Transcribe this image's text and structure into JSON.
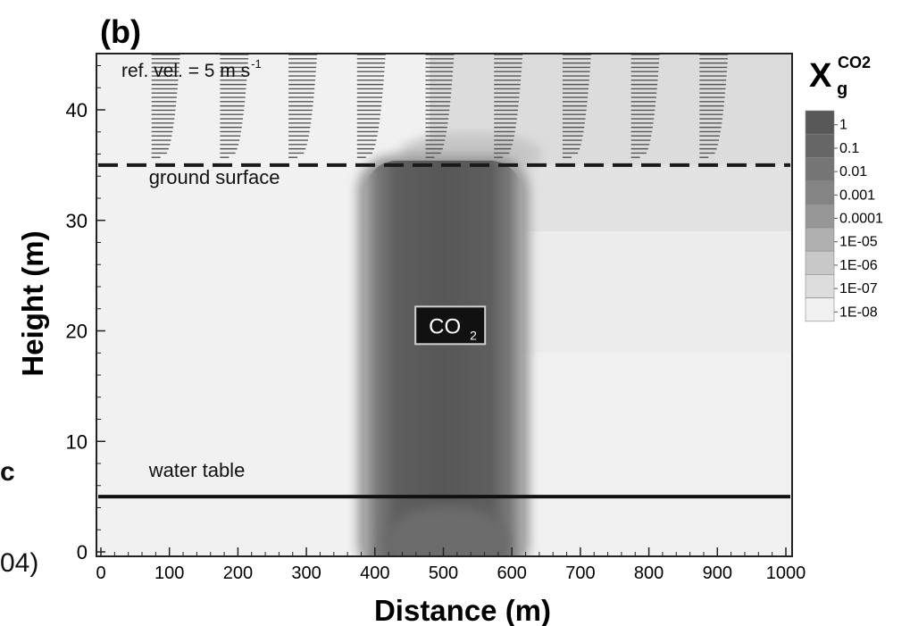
{
  "panel_label": "(b)",
  "edge_fragments": [
    "c",
    "04)"
  ],
  "colors": {
    "plume_core": "#575757",
    "background": "#f1f1f1",
    "upper_zone": "#dcdcdc",
    "water_table": "#111111",
    "ground_surface": "#1a1a1a"
  },
  "chart_data": {
    "type": "heatmap",
    "xlabel": "Distance (m)",
    "ylabel": "Height (m)",
    "xlim": [
      0,
      1000
    ],
    "ylim": [
      0,
      45
    ],
    "xticks": [
      0,
      100,
      200,
      300,
      400,
      500,
      600,
      700,
      800,
      900,
      1000
    ],
    "yticks": [
      0,
      10,
      20,
      30,
      40
    ],
    "grid": false,
    "colorbar": {
      "title_main": "X",
      "title_sub": "g",
      "title_sup": "CO2",
      "placement": "right",
      "levels": [
        "1",
        "0.1",
        "0.01",
        "0.001",
        "0.0001",
        "1E-05",
        "1E-06",
        "1E-07",
        "1E-08"
      ],
      "level_colors": [
        "#585858",
        "#666666",
        "#757575",
        "#848484",
        "#979797",
        "#b0b0b0",
        "#c8c8c8",
        "#dddddd",
        "#f0f0f0"
      ]
    },
    "annotations": [
      {
        "text": "ref. vel. = 5 m s",
        "superscript": "-1",
        "x": 30,
        "y": 43
      },
      {
        "text": "ground surface",
        "x": 70,
        "y": 33.3
      },
      {
        "text": "water table",
        "x": 70,
        "y": 6.8
      },
      {
        "text": "CO",
        "subscript": "2",
        "x": 510,
        "y": 20.5
      }
    ],
    "ground_surface_height": 35,
    "water_table_height": 5,
    "plume": {
      "x_min": 385,
      "x_max": 615,
      "y_bottom": 0,
      "y_top": 35,
      "x_center": 505
    },
    "wind_profile_x": [
      100,
      200,
      300,
      400,
      500,
      600,
      700,
      800,
      900
    ]
  }
}
